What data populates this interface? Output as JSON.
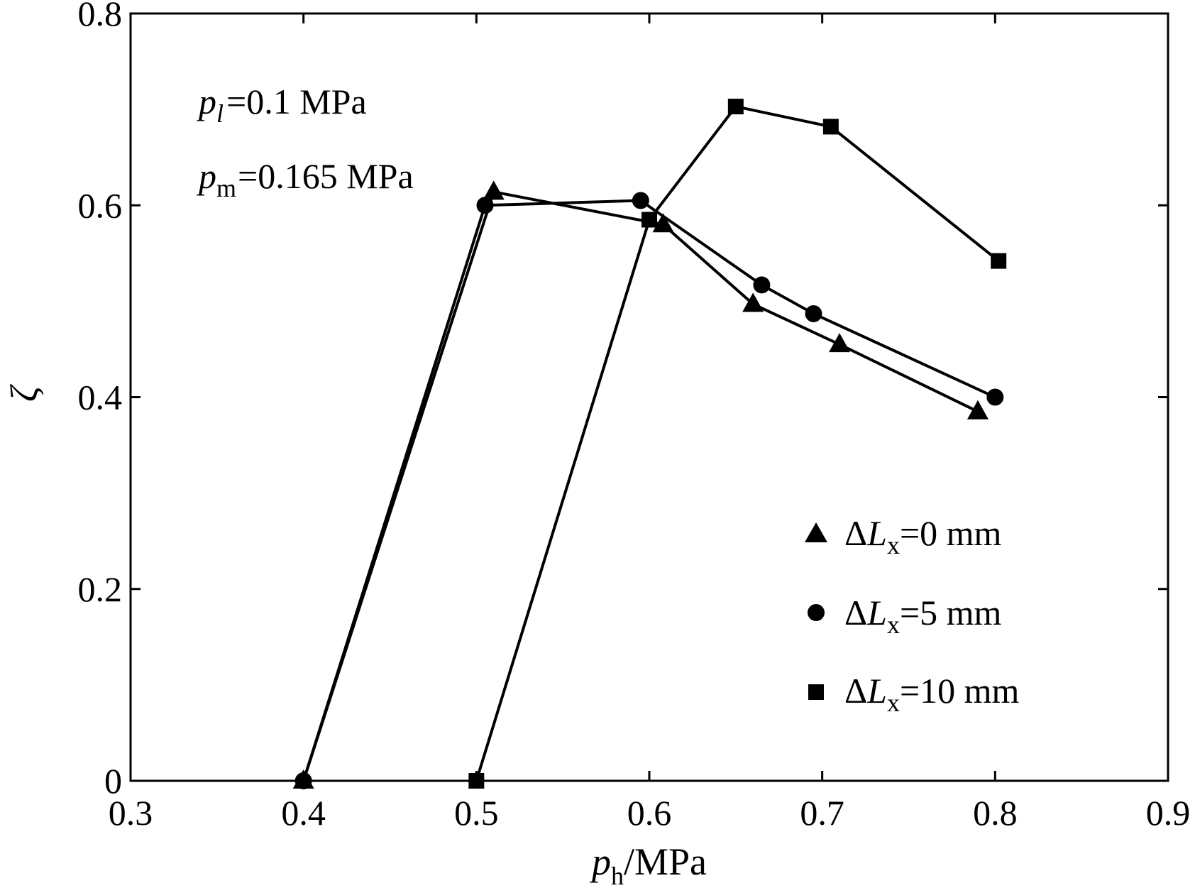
{
  "chart_data": {
    "type": "line",
    "title": "",
    "xlabel": {
      "main": "p",
      "sub": "h",
      "unit": "/MPa"
    },
    "ylabel": "ζ",
    "xlim": [
      0.3,
      0.9
    ],
    "ylim": [
      0,
      0.8
    ],
    "xticks": [
      0.3,
      0.4,
      0.5,
      0.6,
      0.7,
      0.8,
      0.9
    ],
    "xtick_labels": [
      "0.3",
      "0.4",
      "0.5",
      "0.6",
      "0.7",
      "0.8",
      "0.9"
    ],
    "yticks": [
      0,
      0.2,
      0.4,
      0.6,
      0.8
    ],
    "ytick_labels": [
      "0",
      "0.2",
      "0.4",
      "0.6",
      "0.8"
    ],
    "grid": false,
    "legend_position": "lower-right",
    "annotations": [
      {
        "var": "p",
        "sub": "l",
        "text": "=0.1 MPa"
      },
      {
        "var": "p",
        "sub": "m",
        "text": "=0.165 MPa"
      }
    ],
    "series": [
      {
        "name": "ΔLx=0 mm",
        "legend": {
          "delta": "Δ",
          "var": "L",
          "sub": "x",
          "text": "=0 mm"
        },
        "marker": "triangle",
        "x": [
          0.4,
          0.51,
          0.608,
          0.66,
          0.71,
          0.79
        ],
        "y": [
          0.0,
          0.614,
          0.58,
          0.497,
          0.455,
          0.385
        ]
      },
      {
        "name": "ΔLx=5 mm",
        "legend": {
          "delta": "Δ",
          "var": "L",
          "sub": "x",
          "text": "=5 mm"
        },
        "marker": "circle",
        "x": [
          0.4,
          0.505,
          0.595,
          0.665,
          0.695,
          0.8
        ],
        "y": [
          0.0,
          0.6,
          0.605,
          0.517,
          0.487,
          0.4
        ]
      },
      {
        "name": "ΔLx=10 mm",
        "legend": {
          "delta": "Δ",
          "var": "L",
          "sub": "x",
          "text": "=10 mm"
        },
        "marker": "square",
        "x": [
          0.5,
          0.6,
          0.65,
          0.705,
          0.802
        ],
        "y": [
          0.0,
          0.585,
          0.703,
          0.682,
          0.542
        ]
      }
    ]
  }
}
